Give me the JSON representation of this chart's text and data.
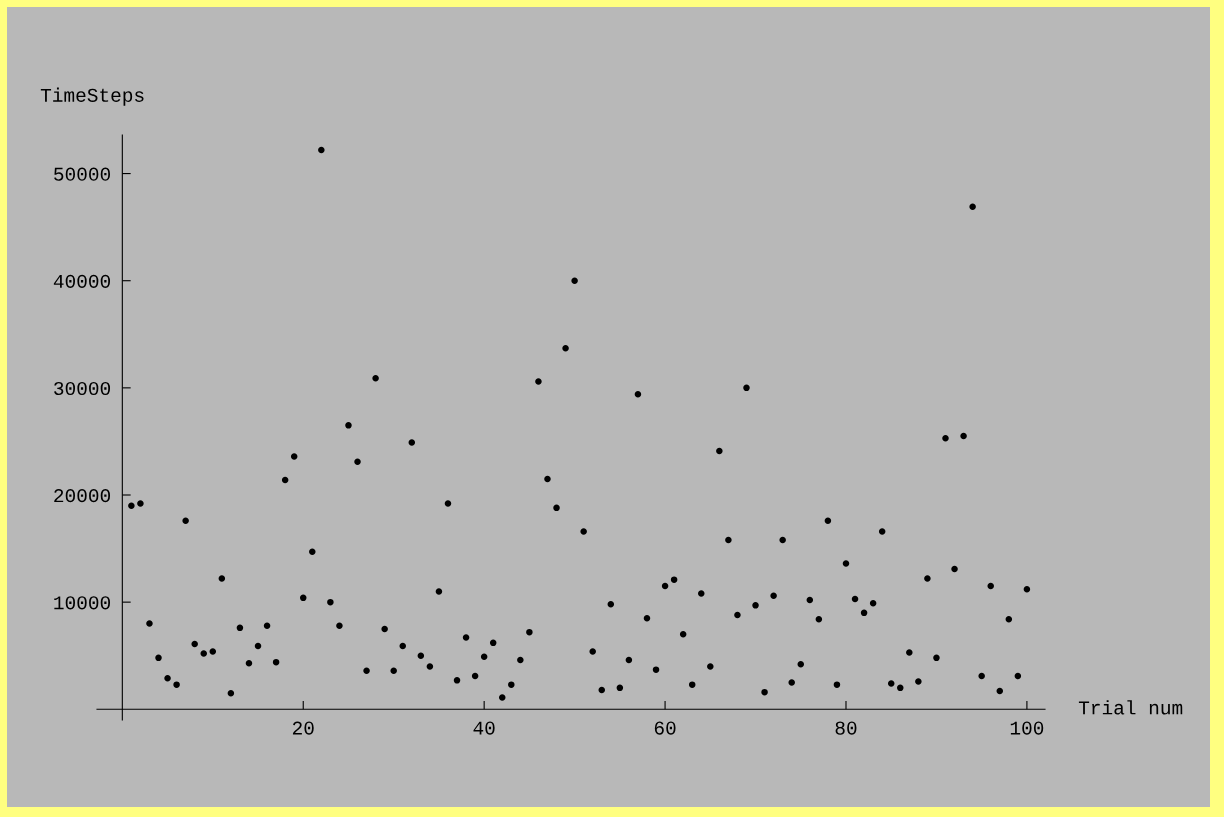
{
  "chart_data": {
    "type": "scatter",
    "xlabel": "Trial num",
    "ylabel": "TimeSteps",
    "x": [
      1,
      2,
      3,
      4,
      5,
      6,
      7,
      8,
      9,
      10,
      11,
      12,
      13,
      14,
      15,
      16,
      17,
      18,
      19,
      20,
      21,
      22,
      23,
      24,
      25,
      26,
      27,
      28,
      29,
      30,
      31,
      32,
      33,
      34,
      35,
      36,
      37,
      38,
      39,
      40,
      41,
      42,
      43,
      44,
      45,
      46,
      47,
      48,
      49,
      50,
      51,
      52,
      53,
      54,
      55,
      56,
      57,
      58,
      59,
      60,
      61,
      62,
      63,
      64,
      65,
      66,
      67,
      68,
      69,
      70,
      71,
      72,
      73,
      74,
      75,
      76,
      77,
      78,
      79,
      80,
      81,
      82,
      83,
      84,
      85,
      86,
      87,
      88,
      89,
      90,
      91,
      92,
      93,
      94,
      95,
      96,
      97,
      98,
      99,
      100
    ],
    "series": [
      {
        "color": "#000000",
        "values": [
          19000,
          19200,
          8000,
          4800,
          2900,
          2300,
          17600,
          6100,
          5200,
          5400,
          12200,
          1500,
          7600,
          4300,
          5900,
          7800,
          4400,
          21400,
          23600,
          10400,
          14700,
          52200,
          10000,
          7800,
          26500,
          23100,
          3600,
          30900,
          7500,
          3600,
          5900,
          24900,
          5000,
          4000,
          11000,
          19200,
          2700,
          6700,
          3100,
          4900,
          6200,
          1100,
          2300,
          4600,
          7200,
          30600,
          21500,
          18800,
          33700,
          40000,
          16600,
          5400,
          1800,
          9800,
          2000,
          4600,
          29400,
          8500,
          3700,
          11500,
          12100,
          7000,
          2300,
          10800,
          4000,
          24100,
          15800,
          8800,
          30000,
          9700,
          1600,
          10600,
          15800,
          2500,
          4200,
          10200,
          8400,
          17600,
          2300,
          13600,
          10300,
          9000,
          9900,
          16600,
          2400,
          2000,
          5300,
          2600,
          12200,
          4800,
          25300,
          13100,
          25500,
          46900,
          3100,
          11500,
          1700,
          8400,
          3100,
          11200
        ]
      }
    ],
    "xlim": [
      -2.8,
      102
    ],
    "ylim": [
      -1000,
      53600
    ],
    "xticks": [
      20,
      40,
      60,
      80,
      100
    ],
    "yticks": [
      10000,
      20000,
      30000,
      40000,
      50000
    ],
    "grid": false,
    "legend": false,
    "marker": "circle"
  }
}
